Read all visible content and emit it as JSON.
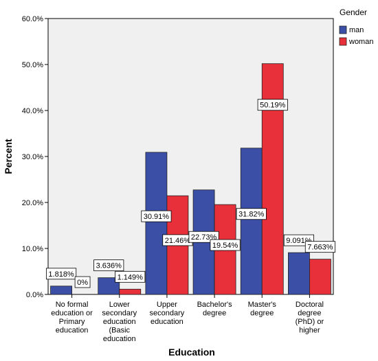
{
  "chart_data": {
    "type": "bar",
    "xlabel": "Education",
    "ylabel": "Percent",
    "ylim": [
      0,
      60
    ],
    "yticks": [
      0,
      10,
      20,
      30,
      40,
      50,
      60
    ],
    "ytick_labels": [
      "0.0%",
      "10.0%",
      "20.0%",
      "30.0%",
      "40.0%",
      "50.0%",
      "60.0%"
    ],
    "grid": false,
    "legend_position": "top-right",
    "legend_title": "Gender",
    "categories": [
      [
        "No formal",
        "education or",
        "Primary",
        "education"
      ],
      [
        "Lower",
        "secondary",
        "education",
        "(Basic",
        "education"
      ],
      [
        "Upper",
        "secondary",
        "education"
      ],
      [
        "Bachelor's",
        "degree"
      ],
      [
        "Master's",
        "degree"
      ],
      [
        "Doctoral",
        "degree",
        "(PhD) or",
        "higher"
      ]
    ],
    "series": [
      {
        "name": "man",
        "color": "#3a4fa5",
        "values": [
          1.818,
          3.636,
          30.91,
          22.73,
          31.82,
          9.091
        ],
        "labels": [
          "1.818%",
          "3.636%",
          "30.91%",
          "22.73%",
          "31.82%",
          "9.091%"
        ]
      },
      {
        "name": "woman",
        "color": "#e8303a",
        "values": [
          0,
          1.149,
          21.46,
          19.54,
          50.19,
          7.663
        ],
        "labels": [
          "0%",
          "1.149%",
          "21.46%",
          "19.54%",
          "50.19%",
          "7.663%"
        ]
      }
    ]
  }
}
